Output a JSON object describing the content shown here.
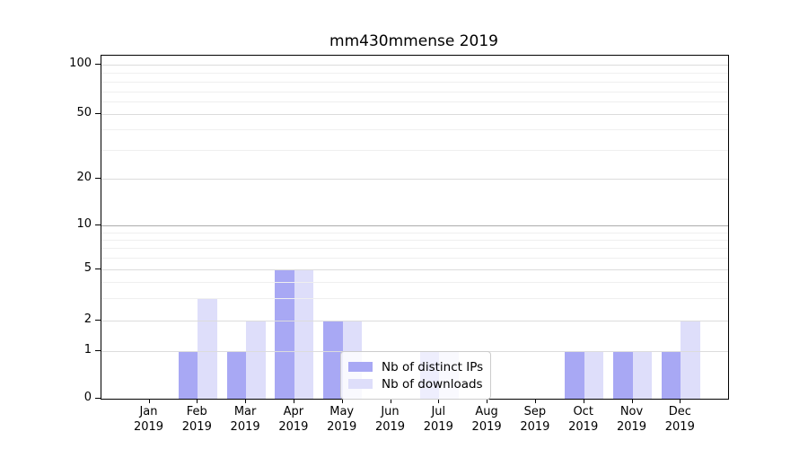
{
  "chart_data": {
    "type": "bar",
    "title": "mm430mmense 2019",
    "categories": [
      "Jan",
      "Feb",
      "Mar",
      "Apr",
      "May",
      "Jun",
      "Jul",
      "Aug",
      "Sep",
      "Oct",
      "Nov",
      "Dec"
    ],
    "year_label": "2019",
    "series": [
      {
        "name": "Nb of distinct IPs",
        "color": "#a8a8f4",
        "values": [
          0,
          1,
          1,
          5,
          2,
          0,
          1,
          0,
          0,
          1,
          1,
          1
        ]
      },
      {
        "name": "Nb of downloads",
        "color": "#dedefa",
        "values": [
          0,
          3,
          2,
          5,
          2,
          0,
          1,
          0,
          0,
          1,
          1,
          2
        ]
      }
    ],
    "yscale": "log-like",
    "yticks": [
      0,
      1,
      2,
      5,
      10,
      20,
      50,
      100
    ],
    "yminorticks": [
      3,
      4,
      6,
      7,
      8,
      9,
      30,
      40,
      60,
      70,
      80,
      90
    ],
    "ylim": [
      0,
      120
    ],
    "grid": "horizontal",
    "legend_position": "lower-center-inside",
    "colors": {
      "grid_major": "#dcdcdc",
      "grid_minor": "#efefef",
      "grid_emphasis_at_10": "#ababab",
      "axis": "#000000",
      "background": "#ffffff"
    }
  }
}
